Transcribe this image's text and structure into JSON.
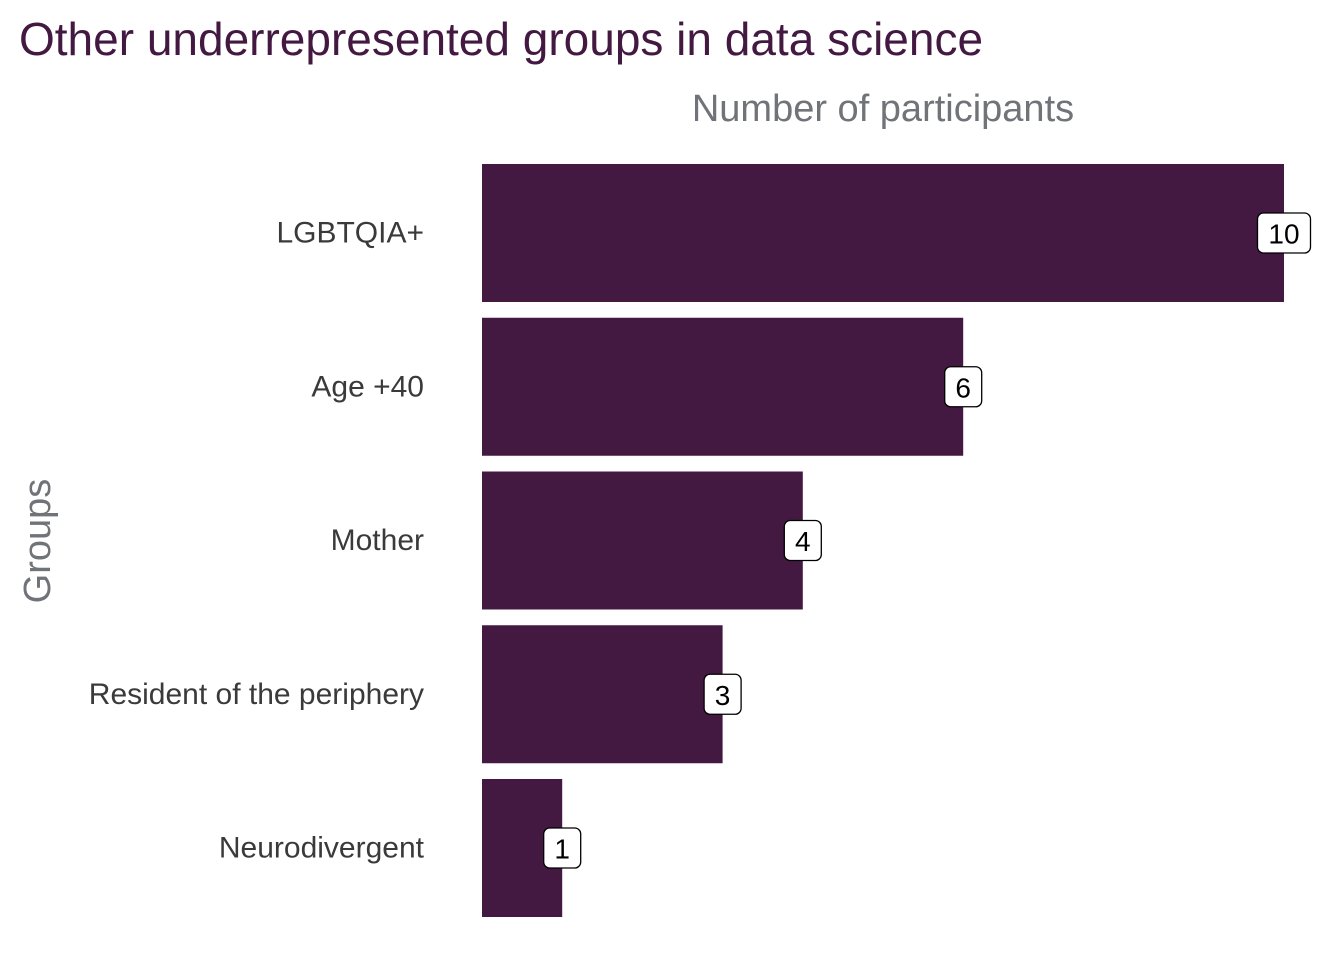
{
  "title": "Other underrepresented groups in data science",
  "colors": {
    "bar": "#431942",
    "title": "#431942",
    "axis_title": "#707378",
    "category_label": "#3a3a3a"
  },
  "chart_data": {
    "type": "bar",
    "orientation": "horizontal",
    "title": "Other underrepresented groups in data science",
    "xlabel": "Number of participants",
    "xlabel_position": "top",
    "ylabel": "Groups",
    "categories": [
      "LGBTQIA+",
      "Age +40",
      "Mother",
      "Resident of the periphery",
      "Neurodivergent"
    ],
    "values": [
      10,
      6,
      4,
      3,
      1
    ],
    "data_labels": [
      "10",
      "6",
      "4",
      "3",
      "1"
    ],
    "xlim": [
      0,
      10
    ],
    "grid": false,
    "legend": false
  }
}
